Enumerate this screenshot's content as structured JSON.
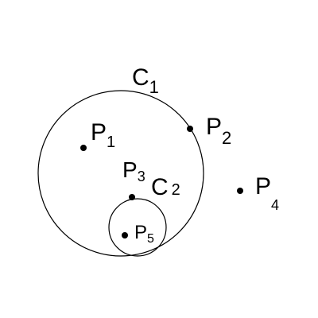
{
  "colors": {
    "background": "#ffffff",
    "stroke": "#000000",
    "point": "#000000"
  },
  "circles": {
    "c1": {
      "name": "C",
      "sub": "1"
    },
    "c2": {
      "name": "C",
      "sub": "2"
    }
  },
  "points": {
    "p1": {
      "name": "P",
      "sub": "1"
    },
    "p2": {
      "name": "P",
      "sub": "2"
    },
    "p3": {
      "name": "P",
      "sub": "3"
    },
    "p4": {
      "name": "P",
      "sub": "4"
    },
    "p5": {
      "name": "P",
      "sub": "5"
    }
  }
}
